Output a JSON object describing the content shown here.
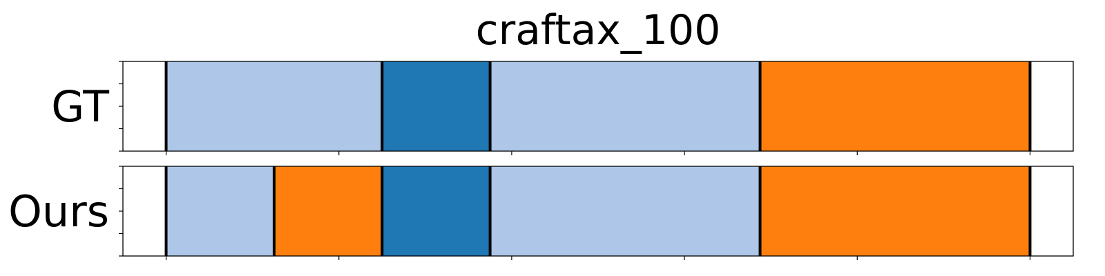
{
  "chart_data": {
    "type": "bar",
    "title": "craftax_100",
    "xlim": [
      -5,
      105
    ],
    "x_ticks": [
      0,
      20,
      40,
      60,
      80,
      100
    ],
    "boundary_lines": [
      0,
      100
    ],
    "grid": false,
    "rows": [
      {
        "label": "GT",
        "segments": [
          {
            "start": 0,
            "end": 25,
            "color": "#aec7e8"
          },
          {
            "start": 25,
            "end": 37.5,
            "color": "#1f77b4"
          },
          {
            "start": 37.5,
            "end": 68.75,
            "color": "#aec7e8"
          },
          {
            "start": 68.75,
            "end": 100,
            "color": "#ff7f0e"
          }
        ]
      },
      {
        "label": "Ours",
        "segments": [
          {
            "start": 0,
            "end": 12.5,
            "color": "#aec7e8"
          },
          {
            "start": 12.5,
            "end": 25,
            "color": "#ff7f0e"
          },
          {
            "start": 25,
            "end": 37.5,
            "color": "#1f77b4"
          },
          {
            "start": 37.5,
            "end": 68.75,
            "color": "#aec7e8"
          },
          {
            "start": 68.75,
            "end": 100,
            "color": "#ff7f0e"
          }
        ]
      }
    ]
  }
}
